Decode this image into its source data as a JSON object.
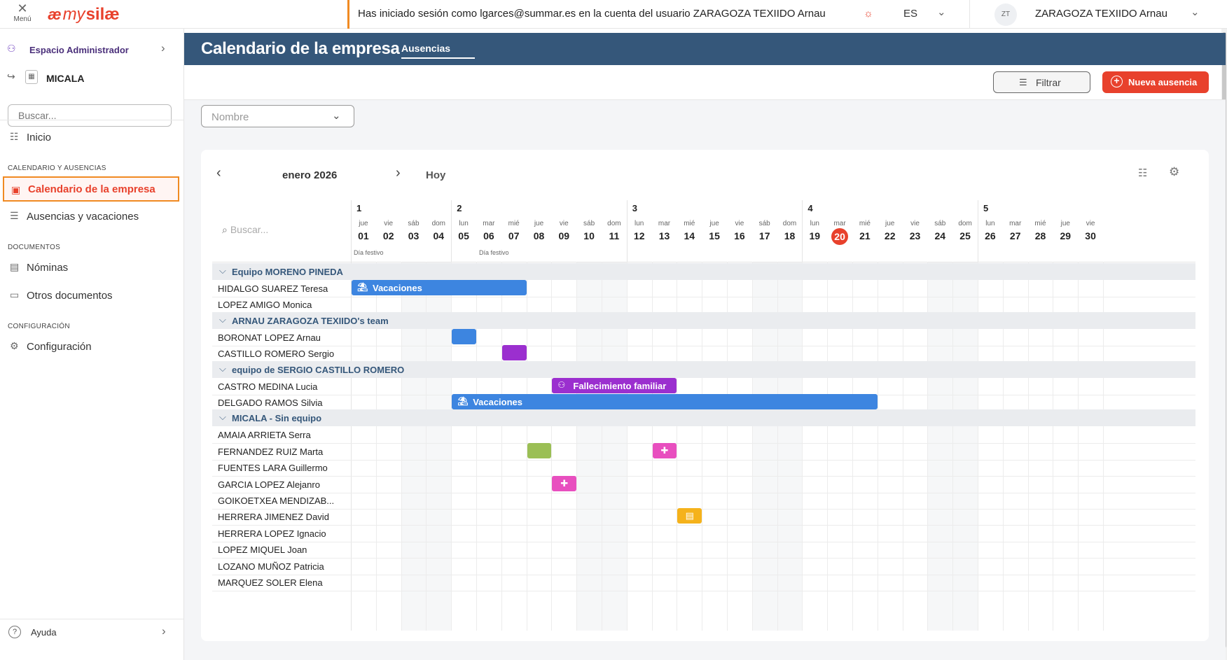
{
  "topbar": {
    "menu_label": "Menú",
    "logo_ae": "æ",
    "logo_my": "my",
    "logo_silae": "silæ",
    "session_text": "Has iniciado sesión como lgarces@summar.es en la cuenta del usuario ZARAGOZA TEXIIDO Arnau",
    "language": "ES",
    "avatar_initials": "ZT",
    "user_name": "ZARAGOZA TEXIIDO Arnau",
    "accent_color": "#e8412c"
  },
  "sidebar": {
    "admin_label": "Espacio Administrador",
    "company_label": "MICALA",
    "search_placeholder": "Buscar...",
    "home_label": "Inicio",
    "section_calendar": "CALENDARIO Y AUSENCIAS",
    "item_company_calendar": "Calendario de la empresa",
    "item_absences": "Ausencias y vacaciones",
    "section_documents": "DOCUMENTOS",
    "item_payslips": "Nóminas",
    "item_other_docs": "Otros documentos",
    "section_config": "CONFIGURACIÓN",
    "item_config": "Configuración",
    "help_label": "Ayuda"
  },
  "header": {
    "title": "Calendario de la empresa",
    "tab": "Ausencias",
    "band_color": "#35577a"
  },
  "actions": {
    "filter_label": "Filtrar",
    "new_absence_label": "Nueva ausencia",
    "name_select_placeholder": "Nombre"
  },
  "calendar": {
    "month_label": "enero 2026",
    "today_label": "Hoy",
    "search_placeholder": "Buscar...",
    "holiday_note": "Día festivo",
    "weeks": [
      "1",
      "2",
      "3",
      "4",
      "5"
    ],
    "days": [
      {
        "dow": "jue",
        "num": "01"
      },
      {
        "dow": "vie",
        "num": "02"
      },
      {
        "dow": "sáb",
        "num": "03"
      },
      {
        "dow": "dom",
        "num": "04"
      },
      {
        "dow": "lun",
        "num": "05"
      },
      {
        "dow": "mar",
        "num": "06"
      },
      {
        "dow": "mié",
        "num": "07"
      },
      {
        "dow": "jue",
        "num": "08"
      },
      {
        "dow": "vie",
        "num": "09"
      },
      {
        "dow": "sáb",
        "num": "10"
      },
      {
        "dow": "dom",
        "num": "11"
      },
      {
        "dow": "lun",
        "num": "12"
      },
      {
        "dow": "mar",
        "num": "13"
      },
      {
        "dow": "mié",
        "num": "14"
      },
      {
        "dow": "jue",
        "num": "15"
      },
      {
        "dow": "vie",
        "num": "16"
      },
      {
        "dow": "sáb",
        "num": "17"
      },
      {
        "dow": "dom",
        "num": "18"
      },
      {
        "dow": "lun",
        "num": "19"
      },
      {
        "dow": "mar",
        "num": "20"
      },
      {
        "dow": "mié",
        "num": "21"
      },
      {
        "dow": "jue",
        "num": "22"
      },
      {
        "dow": "vie",
        "num": "23"
      },
      {
        "dow": "sáb",
        "num": "24"
      },
      {
        "dow": "dom",
        "num": "25"
      },
      {
        "dow": "lun",
        "num": "26"
      },
      {
        "dow": "mar",
        "num": "27"
      },
      {
        "dow": "mié",
        "num": "28"
      },
      {
        "dow": "jue",
        "num": "29"
      },
      {
        "dow": "vie",
        "num": "30"
      }
    ],
    "today": "20",
    "holidays": [
      "01",
      "06"
    ],
    "rows": [
      {
        "type": "group",
        "label": "Equipo MORENO PINEDA"
      },
      {
        "type": "emp",
        "name": "HIDALGO SUAREZ Teresa"
      },
      {
        "type": "emp",
        "name": "LOPEZ AMIGO Monica"
      },
      {
        "type": "group",
        "label": "ARNAU ZARAGOZA TEXIIDO's team"
      },
      {
        "type": "emp",
        "name": "BORONAT LOPEZ Arnau"
      },
      {
        "type": "emp",
        "name": "CASTILLO ROMERO Sergio"
      },
      {
        "type": "group",
        "label": "equipo de SERGIO CASTILLO ROMERO"
      },
      {
        "type": "emp",
        "name": "CASTRO MEDINA Lucia"
      },
      {
        "type": "emp",
        "name": "DELGADO RAMOS Silvia"
      },
      {
        "type": "group",
        "label": "MICALA - Sin equipo"
      },
      {
        "type": "emp",
        "name": "AMAIA ARRIETA Serra"
      },
      {
        "type": "emp",
        "name": "FERNANDEZ RUIZ Marta"
      },
      {
        "type": "emp",
        "name": "FUENTES LARA Guillermo"
      },
      {
        "type": "emp",
        "name": "GARCIA LOPEZ Alejanro"
      },
      {
        "type": "emp",
        "name": "GOIKOETXEA MENDIZAB..."
      },
      {
        "type": "emp",
        "name": "HERRERA JIMENEZ David"
      },
      {
        "type": "emp",
        "name": "HERRERA LOPEZ Ignacio"
      },
      {
        "type": "emp",
        "name": "LOPEZ MIQUEL Joan"
      },
      {
        "type": "emp",
        "name": "LOZANO MUÑOZ Patricia"
      },
      {
        "type": "emp",
        "name": "MARQUEZ SOLER Elena"
      }
    ],
    "absences": [
      {
        "row": 1,
        "start": "01",
        "end": "07",
        "label": "Vacaciones",
        "icon": "beach-icon",
        "color": "#3d85e0"
      },
      {
        "row": 4,
        "start": "05",
        "end": "05",
        "label": "",
        "icon": "",
        "color": "#3d85e0"
      },
      {
        "row": 5,
        "start": "07",
        "end": "07",
        "label": "",
        "icon": "",
        "color": "#9b2fcf"
      },
      {
        "row": 7,
        "start": "09",
        "end": "13",
        "label": "Fallecimiento familiar",
        "icon": "family-icon",
        "color": "#9b2fcf"
      },
      {
        "row": 8,
        "start": "05",
        "end": "21",
        "label": "Vacaciones",
        "icon": "beach-icon",
        "color": "#3d85e0"
      },
      {
        "row": 11,
        "start": "08",
        "end": "08",
        "label": "",
        "icon": "",
        "color": "#9bbf55"
      },
      {
        "row": 11,
        "start": "13",
        "end": "13",
        "label": "",
        "icon": "medical-cross-icon",
        "color": "#e84fbf"
      },
      {
        "row": 13,
        "start": "09",
        "end": "09",
        "label": "",
        "icon": "medical-cross-icon",
        "color": "#e84fbf"
      },
      {
        "row": 15,
        "start": "14",
        "end": "14",
        "label": "",
        "icon": "document-icon",
        "color": "#f5b21b"
      }
    ]
  }
}
